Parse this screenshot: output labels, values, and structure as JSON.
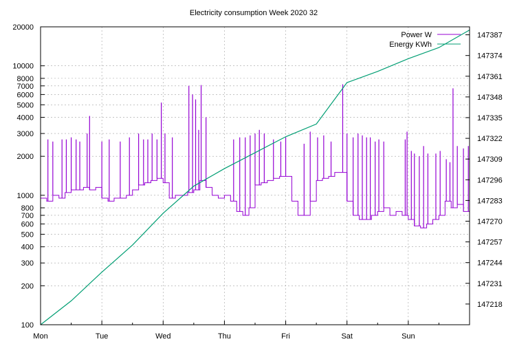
{
  "chart_data": {
    "type": "line",
    "title": "Electricity consumption Week 2020 32",
    "xlabel": "",
    "ylabel": "",
    "y2label": "",
    "grid": true,
    "legend_position": "top-right",
    "x_ticks": [
      "Mon",
      "Tue",
      "Wed",
      "Thu",
      "Fri",
      "Sat",
      "Sun"
    ],
    "xlim": [
      0,
      7
    ],
    "y_left": {
      "scale": "log",
      "ylim": [
        100,
        20000
      ],
      "ticks": [
        100,
        200,
        300,
        400,
        500,
        600,
        700,
        800,
        1000,
        2000,
        3000,
        4000,
        5000,
        6000,
        7000,
        8000,
        10000,
        20000
      ],
      "tick_labels": [
        "100",
        "200",
        "300",
        "400",
        "500",
        "600",
        "700",
        "800",
        "1000",
        "2000",
        "3000",
        "4000",
        "5000",
        "6000",
        "7000",
        "8000",
        "10000",
        "20000"
      ]
    },
    "y_right": {
      "scale": "linear",
      "ylim": [
        147205,
        147392
      ],
      "ticks": [
        147218,
        147231,
        147244,
        147257,
        147270,
        147283,
        147296,
        147309,
        147322,
        147335,
        147348,
        147361,
        147374,
        147387
      ],
      "tick_labels": [
        "147218",
        "147231",
        "147244",
        "147257",
        "147270",
        "147283",
        "147296",
        "147309",
        "147322",
        "147335",
        "147348",
        "147361",
        "147374",
        "147387"
      ]
    },
    "colors": {
      "power": "#9400d3",
      "energy": "#009e73",
      "grid": "#a0a0a0"
    },
    "series": [
      {
        "name": "Power W",
        "axis": "left",
        "x": [
          0,
          0.1,
          0.2,
          0.3,
          0.4,
          0.5,
          0.6,
          0.7,
          0.8,
          0.9,
          1.0,
          1.1,
          1.2,
          1.3,
          1.4,
          1.5,
          1.6,
          1.7,
          1.8,
          1.9,
          2.0,
          2.1,
          2.2,
          2.3,
          2.4,
          2.5,
          2.6,
          2.7,
          2.8,
          2.9,
          3.0,
          3.1,
          3.2,
          3.3,
          3.4,
          3.5,
          3.6,
          3.7,
          3.8,
          3.9,
          4.0,
          4.1,
          4.2,
          4.3,
          4.4,
          4.5,
          4.6,
          4.7,
          4.8,
          4.9,
          5.0,
          5.1,
          5.2,
          5.3,
          5.4,
          5.5,
          5.6,
          5.7,
          5.8,
          5.9,
          6.0,
          6.1,
          6.2,
          6.3,
          6.4,
          6.5,
          6.6,
          6.7,
          6.8,
          6.9,
          7.0
        ],
        "values": [
          950,
          900,
          1000,
          950,
          1050,
          1100,
          1100,
          1150,
          1100,
          1150,
          950,
          900,
          950,
          950,
          1000,
          1100,
          1200,
          1250,
          1300,
          1350,
          1250,
          950,
          1000,
          1000,
          1050,
          1100,
          1300,
          1150,
          1000,
          950,
          1000,
          900,
          750,
          700,
          800,
          1200,
          1250,
          1300,
          1350,
          1400,
          1400,
          900,
          700,
          700,
          900,
          1300,
          1350,
          1400,
          1500,
          1500,
          900,
          700,
          650,
          650,
          700,
          750,
          800,
          700,
          750,
          700,
          650,
          580,
          560,
          600,
          650,
          700,
          900,
          800,
          850,
          750,
          700
        ],
        "spikes": [
          [
            0.12,
            2700
          ],
          [
            0.2,
            2600
          ],
          [
            0.35,
            2700
          ],
          [
            0.42,
            2700
          ],
          [
            0.5,
            2800
          ],
          [
            0.58,
            2700
          ],
          [
            0.64,
            2600
          ],
          [
            0.76,
            3000
          ],
          [
            0.8,
            4100
          ],
          [
            1.0,
            2600
          ],
          [
            1.12,
            2700
          ],
          [
            1.3,
            2600
          ],
          [
            1.45,
            2800
          ],
          [
            1.6,
            3000
          ],
          [
            1.68,
            2700
          ],
          [
            1.75,
            2700
          ],
          [
            1.82,
            3000
          ],
          [
            1.9,
            2700
          ],
          [
            1.97,
            5200
          ],
          [
            2.03,
            3000
          ],
          [
            2.15,
            2800
          ],
          [
            2.42,
            7000
          ],
          [
            2.48,
            6000
          ],
          [
            2.53,
            5500
          ],
          [
            2.58,
            3200
          ],
          [
            2.62,
            7100
          ],
          [
            2.7,
            4000
          ],
          [
            3.15,
            2700
          ],
          [
            3.25,
            2800
          ],
          [
            3.34,
            2800
          ],
          [
            3.42,
            2900
          ],
          [
            3.5,
            3000
          ],
          [
            3.57,
            3200
          ],
          [
            3.65,
            3000
          ],
          [
            3.8,
            2700
          ],
          [
            3.92,
            2600
          ],
          [
            4.0,
            2800
          ],
          [
            4.3,
            2500
          ],
          [
            4.4,
            3100
          ],
          [
            4.52,
            2800
          ],
          [
            4.62,
            2900
          ],
          [
            4.74,
            2600
          ],
          [
            4.93,
            7200
          ],
          [
            5.0,
            3000
          ],
          [
            5.1,
            2800
          ],
          [
            5.18,
            3000
          ],
          [
            5.25,
            2900
          ],
          [
            5.32,
            2800
          ],
          [
            5.38,
            2800
          ],
          [
            5.46,
            2600
          ],
          [
            5.52,
            2700
          ],
          [
            5.6,
            2600
          ],
          [
            5.95,
            2700
          ],
          [
            5.98,
            3100
          ],
          [
            6.05,
            2200
          ],
          [
            6.1,
            2100
          ],
          [
            6.18,
            2000
          ],
          [
            6.25,
            2400
          ],
          [
            6.32,
            2100
          ],
          [
            6.45,
            2100
          ],
          [
            6.52,
            2200
          ],
          [
            6.62,
            1900
          ],
          [
            6.68,
            1800
          ],
          [
            6.73,
            6700
          ],
          [
            6.8,
            2400
          ],
          [
            6.9,
            2300
          ],
          [
            6.98,
            2400
          ]
        ]
      },
      {
        "name": "Energy KWh",
        "axis": "right",
        "x": [
          0,
          0.5,
          1.0,
          1.5,
          2.0,
          2.5,
          3.0,
          3.5,
          4.0,
          4.5,
          5.0,
          5.5,
          6.0,
          6.5,
          7.0
        ],
        "values": [
          147205,
          147220,
          147238,
          147255,
          147275,
          147292,
          147303,
          147313,
          147323,
          147331,
          147357,
          147364,
          147372,
          147379,
          147390
        ]
      }
    ]
  }
}
